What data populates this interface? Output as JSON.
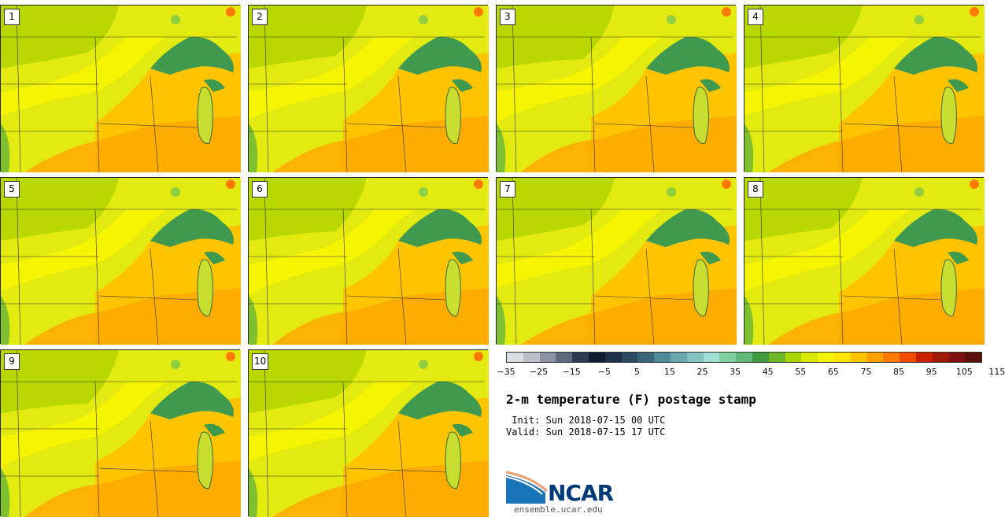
{
  "panels": [
    "1",
    "2",
    "3",
    "4",
    "5",
    "6",
    "7",
    "8",
    "9",
    "10"
  ],
  "colorbar": {
    "colors": [
      "#d9dee4",
      "#b9c0ca",
      "#8a94a4",
      "#5e6a7e",
      "#2e3a52",
      "#101a30",
      "#1c2e48",
      "#2b4a63",
      "#3b6578",
      "#4d8a98",
      "#66a8ae",
      "#82c4c4",
      "#9fdfd6",
      "#7fcf9f",
      "#5fb97a",
      "#3f9a40",
      "#6fb82a",
      "#aad400",
      "#d8e800",
      "#f4f400",
      "#ffe400",
      "#ffc400",
      "#ffa000",
      "#ff7a00",
      "#f04a00",
      "#c82000",
      "#a01808",
      "#801010",
      "#5a1008"
    ],
    "ticks": [
      "−35",
      "−25",
      "−15",
      "−5",
      "5",
      "15",
      "25",
      "35",
      "45",
      "55",
      "65",
      "75",
      "85",
      "95",
      "105",
      "115"
    ]
  },
  "title": "2-m temperature (F) postage stamp",
  "init": " Init: Sun 2018-07-15 00 UTC",
  "valid": "Valid: Sun 2018-07-15 17 UTC",
  "logo": {
    "text": "NCAR",
    "url": "ensemble.ucar.edu"
  }
}
